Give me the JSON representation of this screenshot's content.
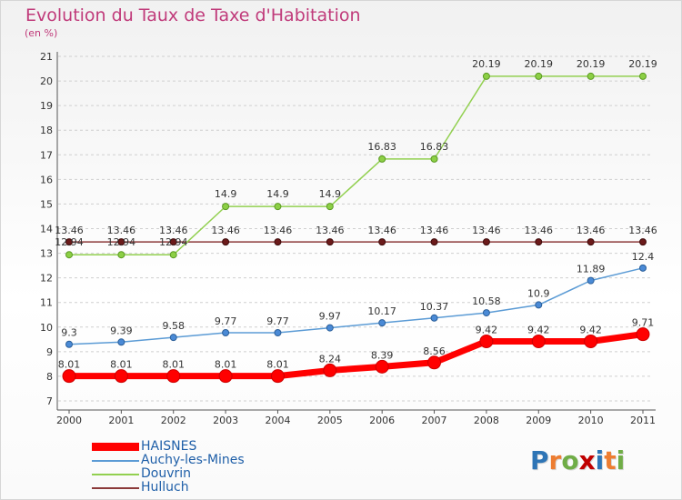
{
  "header": {
    "title": "Evolution du Taux de Taxe d'Habitation",
    "unit_label": "(en %)"
  },
  "chart_data": {
    "type": "line",
    "title": "Evolution du Taux de Taxe d'Habitation",
    "ylabel": "(en %)",
    "xlabel": "",
    "x": [
      "2000",
      "2001",
      "2002",
      "2003",
      "2004",
      "2005",
      "2006",
      "2007",
      "2008",
      "2009",
      "2010",
      "2011"
    ],
    "ylim": [
      7,
      21
    ],
    "yticks": [
      7,
      8,
      9,
      10,
      11,
      12,
      13,
      14,
      15,
      16,
      17,
      18,
      19,
      20,
      21
    ],
    "grid": "horizontal",
    "legend_position": "bottom-left",
    "series": [
      {
        "name": "HAISNES",
        "color": "#ff0000",
        "values": [
          8.01,
          8.01,
          8.01,
          8.01,
          8.01,
          8.24,
          8.39,
          8.56,
          9.42,
          9.42,
          9.42,
          9.71
        ],
        "labels": [
          "8.01",
          "8.01",
          "8.01",
          "8.01",
          "8.01",
          "8.24",
          "8.39",
          "8.56",
          "9.42",
          "9.42",
          "9.42",
          "9.71"
        ]
      },
      {
        "name": "Auchy-les-Mines",
        "color": "#5b9bd5",
        "values": [
          9.3,
          9.39,
          9.58,
          9.77,
          9.77,
          9.97,
          10.17,
          10.37,
          10.58,
          10.9,
          11.89,
          12.4
        ],
        "labels": [
          "9.3",
          "9.39",
          "9.58",
          "9.77",
          "9.77",
          "9.97",
          "10.17",
          "10.37",
          "10.58",
          "10.9",
          "11.89",
          "12.4"
        ]
      },
      {
        "name": "Douvrin",
        "color": "#92d050",
        "values": [
          12.94,
          12.94,
          12.94,
          14.9,
          14.9,
          14.9,
          16.83,
          16.83,
          20.19,
          20.19,
          20.19,
          20.19
        ],
        "labels": [
          "12.94",
          "12.94",
          "12.94",
          "14.9",
          "14.9",
          "14.9",
          "16.83",
          "16.83",
          "20.19",
          "20.19",
          "20.19",
          "20.19"
        ]
      },
      {
        "name": "Hulluch",
        "color": "#8b3a3a",
        "values": [
          13.46,
          13.46,
          13.46,
          13.46,
          13.46,
          13.46,
          13.46,
          13.46,
          13.46,
          13.46,
          13.46,
          13.46
        ],
        "labels": [
          "13.46",
          "13.46",
          "13.46",
          "13.46",
          "13.46",
          "13.46",
          "13.46",
          "13.46",
          "13.46",
          "13.46",
          "13.46",
          "13.46"
        ]
      }
    ]
  },
  "legend": {
    "items": [
      "HAISNES",
      "Auchy-les-Mines",
      "Douvrin",
      "Hulluch"
    ]
  },
  "logo": {
    "letters": [
      "P",
      "r",
      "o",
      "x",
      "i",
      "t",
      "i"
    ],
    "colors": [
      "#2e75b6",
      "#ed7d31",
      "#70ad47",
      "#c00000",
      "#2e75b6",
      "#ed7d31",
      "#70ad47"
    ]
  }
}
